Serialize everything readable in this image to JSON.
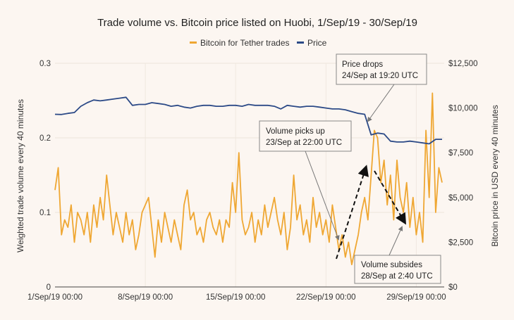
{
  "chart_data": {
    "type": "line",
    "title": "Trade volume vs. Bitcoin price listed on Huobi, 1/Sep/19 - 30/Sep/19",
    "ylabel_left": "Weighted trade volume every 40 minutes",
    "ylabel_right": "Bitcoin price in USD every 40 minutes",
    "legend_position": "top",
    "grid": true,
    "xlim_days": [
      "1/Sep/19 00:00",
      "1/Oct/19 00:00"
    ],
    "x_ticks": [
      "1/Sep/19 00:00",
      "8/Sep/19 00:00",
      "15/Sep/19 00:00",
      "22/Sep/19 00:00",
      "29/Sep/19 00:00"
    ],
    "y_left_ticks": [
      "0",
      "0.1",
      "0.2",
      "0.3"
    ],
    "y_left_lim": [
      0,
      0.3
    ],
    "y_right_ticks": [
      "$0",
      "$2,500",
      "$5,000",
      "$7,500",
      "$10,000",
      "$12,500"
    ],
    "y_right_lim": [
      0,
      12500
    ],
    "series": [
      {
        "name": "Bitcoin for Tether trades",
        "axis": "left",
        "color": "#efa733",
        "sampling": "every 6 hours from 1/Sep/19 00:00",
        "values": [
          0.13,
          0.16,
          0.07,
          0.09,
          0.08,
          0.11,
          0.06,
          0.1,
          0.09,
          0.07,
          0.1,
          0.06,
          0.11,
          0.08,
          0.12,
          0.09,
          0.15,
          0.11,
          0.07,
          0.1,
          0.08,
          0.06,
          0.1,
          0.07,
          0.09,
          0.05,
          0.07,
          0.1,
          0.11,
          0.12,
          0.08,
          0.04,
          0.09,
          0.06,
          0.1,
          0.08,
          0.06,
          0.09,
          0.07,
          0.05,
          0.11,
          0.13,
          0.09,
          0.1,
          0.07,
          0.08,
          0.06,
          0.09,
          0.1,
          0.08,
          0.07,
          0.09,
          0.06,
          0.09,
          0.08,
          0.14,
          0.1,
          0.18,
          0.09,
          0.07,
          0.08,
          0.1,
          0.06,
          0.09,
          0.07,
          0.11,
          0.08,
          0.1,
          0.12,
          0.09,
          0.07,
          0.1,
          0.05,
          0.08,
          0.15,
          0.09,
          0.11,
          0.07,
          0.09,
          0.06,
          0.12,
          0.08,
          0.1,
          0.07,
          0.09,
          0.06,
          0.11,
          0.08,
          0.05,
          0.07,
          0.04,
          0.06,
          0.03,
          0.05,
          0.07,
          0.1,
          0.12,
          0.09,
          0.15,
          0.21,
          0.2,
          0.14,
          0.17,
          0.11,
          0.15,
          0.09,
          0.17,
          0.12,
          0.1,
          0.14,
          0.08,
          0.12,
          0.07,
          0.1,
          0.06,
          0.21,
          0.12,
          0.26,
          0.1,
          0.16,
          0.14
        ]
      },
      {
        "name": "Price",
        "axis": "right",
        "color": "#2c4a87",
        "sampling": "every 12 hours from 1/Sep/19 00:00",
        "values": [
          9650,
          9640,
          9700,
          9750,
          10100,
          10300,
          10450,
          10400,
          10450,
          10500,
          10550,
          10600,
          10150,
          10200,
          10200,
          10300,
          10250,
          10200,
          10100,
          10150,
          10050,
          10000,
          10100,
          10150,
          10150,
          10100,
          10100,
          10150,
          10150,
          10100,
          10200,
          10150,
          10150,
          10150,
          10100,
          9950,
          10150,
          10100,
          10050,
          10100,
          10100,
          10050,
          10000,
          9950,
          9950,
          9900,
          9800,
          9700,
          9650,
          8500,
          8600,
          8550,
          8150,
          8100,
          8100,
          8150,
          8100,
          8050,
          8000,
          8250,
          8250
        ]
      }
    ],
    "annotations": [
      {
        "line1": "Price drops",
        "line2": "24/Sep at 19:20 UTC"
      },
      {
        "line1": "Volume picks up",
        "line2": "23/Sep at 22:00 UTC"
      },
      {
        "line1": "Volume subsides",
        "line2": "28/Sep at 2:40 UTC"
      }
    ]
  }
}
